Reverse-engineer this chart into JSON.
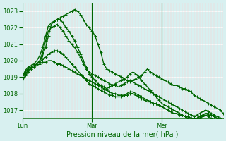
{
  "title": "Pression niveau de la mer( hPa )",
  "bg_color": "#d8f0f0",
  "grid_color": "#ffffff",
  "line_color": "#006600",
  "text_color": "#006600",
  "ylim": [
    1016.5,
    1023.5
  ],
  "yticks": [
    1017,
    1018,
    1019,
    1020,
    1021,
    1022,
    1023
  ],
  "day_labels": [
    "Lun",
    "Mar",
    "Mer"
  ],
  "day_positions": [
    0,
    24,
    48
  ],
  "series": [
    [
      1018.7,
      1019.1,
      1019.3,
      1019.5,
      1019.6,
      1019.8,
      1020.0,
      1020.3,
      1020.8,
      1021.5,
      1022.2,
      1022.4,
      1022.5,
      1022.6,
      1022.7,
      1022.8,
      1022.9,
      1023.0,
      1023.1,
      1023.0,
      1022.8,
      1022.5,
      1022.2,
      1022.0,
      1021.8,
      1021.5,
      1021.0,
      1020.5,
      1019.8,
      1019.5,
      1019.4,
      1019.3,
      1019.2,
      1019.1,
      1019.0,
      1018.9,
      1018.8,
      1018.7,
      1018.8,
      1018.9,
      1019.0,
      1019.1,
      1019.3,
      1019.5,
      1019.3,
      1019.2,
      1019.1,
      1019.0,
      1018.9,
      1018.8,
      1018.7,
      1018.6,
      1018.5,
      1018.5,
      1018.4,
      1018.3,
      1018.3,
      1018.2,
      1018.1,
      1017.9,
      1017.8,
      1017.7,
      1017.6,
      1017.5,
      1017.4,
      1017.3,
      1017.2,
      1017.1,
      1017.0,
      1016.8
    ],
    [
      1019.0,
      1019.3,
      1019.5,
      1019.6,
      1019.7,
      1019.8,
      1020.0,
      1020.5,
      1021.2,
      1021.8,
      1022.0,
      1022.1,
      1022.2,
      1022.0,
      1021.8,
      1021.5,
      1021.2,
      1021.0,
      1020.8,
      1020.5,
      1020.2,
      1019.8,
      1019.5,
      1019.3,
      1019.2,
      1019.1,
      1019.0,
      1018.9,
      1018.8,
      1018.7,
      1018.6,
      1018.5,
      1018.5,
      1018.4,
      1018.5,
      1018.6,
      1018.7,
      1018.8,
      1018.7,
      1018.6,
      1018.5,
      1018.4,
      1018.3,
      1018.2,
      1018.1,
      1018.0,
      1017.9,
      1017.8,
      1017.7,
      1017.6,
      1017.5,
      1017.4,
      1017.3,
      1017.2,
      1017.1,
      1017.0,
      1016.9,
      1016.8,
      1016.7,
      1016.6,
      1016.7,
      1016.8,
      1016.9,
      1017.0,
      1016.9,
      1016.8,
      1016.7,
      1016.6,
      1016.5,
      1016.4
    ],
    [
      1019.0,
      1019.4,
      1019.6,
      1019.7,
      1019.8,
      1020.0,
      1020.3,
      1020.8,
      1021.5,
      1022.1,
      1022.3,
      1022.4,
      1022.5,
      1022.5,
      1022.3,
      1022.0,
      1021.8,
      1021.5,
      1021.2,
      1020.8,
      1020.4,
      1020.0,
      1019.6,
      1019.2,
      1019.0,
      1018.8,
      1018.6,
      1018.5,
      1018.4,
      1018.3,
      1018.4,
      1018.5,
      1018.6,
      1018.7,
      1018.8,
      1018.9,
      1019.0,
      1019.2,
      1019.3,
      1019.2,
      1019.0,
      1018.8,
      1018.6,
      1018.4,
      1018.2,
      1018.0,
      1017.8,
      1017.6,
      1017.4,
      1017.3,
      1017.2,
      1017.1,
      1017.0,
      1016.9,
      1016.8,
      1016.7,
      1016.6,
      1016.5,
      1016.4,
      1016.3,
      1016.4,
      1016.5,
      1016.6,
      1016.7,
      1016.6,
      1016.5,
      1016.4,
      1016.3,
      1016.2,
      1016.1
    ],
    [
      1019.0,
      1019.2,
      1019.4,
      1019.5,
      1019.6,
      1019.7,
      1019.8,
      1019.9,
      1019.9,
      1020.0,
      1020.0,
      1019.9,
      1019.8,
      1019.8,
      1019.7,
      1019.6,
      1019.5,
      1019.4,
      1019.3,
      1019.2,
      1019.1,
      1019.0,
      1018.9,
      1018.8,
      1018.7,
      1018.6,
      1018.5,
      1018.4,
      1018.3,
      1018.2,
      1018.1,
      1018.0,
      1018.0,
      1017.9,
      1017.9,
      1017.9,
      1017.9,
      1018.0,
      1018.0,
      1017.9,
      1017.8,
      1017.7,
      1017.6,
      1017.5,
      1017.5,
      1017.4,
      1017.4,
      1017.3,
      1017.2,
      1017.1,
      1017.0,
      1016.9,
      1016.8,
      1016.8,
      1016.7,
      1016.7,
      1016.6,
      1016.6,
      1016.5,
      1016.5,
      1016.5,
      1016.6,
      1016.7,
      1016.8,
      1016.7,
      1016.7,
      1016.6,
      1016.5,
      1016.4,
      1016.3
    ],
    [
      1019.1,
      1019.3,
      1019.5,
      1019.6,
      1019.7,
      1019.8,
      1019.9,
      1020.1,
      1020.2,
      1020.4,
      1020.5,
      1020.6,
      1020.6,
      1020.5,
      1020.4,
      1020.2,
      1020.0,
      1019.8,
      1019.6,
      1019.4,
      1019.2,
      1019.0,
      1018.8,
      1018.6,
      1018.5,
      1018.4,
      1018.3,
      1018.2,
      1018.1,
      1018.0,
      1017.9,
      1017.9,
      1017.8,
      1017.8,
      1017.8,
      1017.9,
      1018.0,
      1018.1,
      1018.1,
      1018.0,
      1017.9,
      1017.8,
      1017.7,
      1017.6,
      1017.5,
      1017.4,
      1017.4,
      1017.3,
      1017.2,
      1017.1,
      1017.0,
      1016.9,
      1016.8,
      1016.8,
      1016.7,
      1016.7,
      1016.6,
      1016.6,
      1016.5,
      1016.5,
      1016.5,
      1016.6,
      1016.7,
      1016.8,
      1016.8,
      1016.7,
      1016.6,
      1016.5,
      1016.4,
      1016.3
    ]
  ],
  "marker": "+",
  "markersize": 3,
  "linewidth": 1.0
}
